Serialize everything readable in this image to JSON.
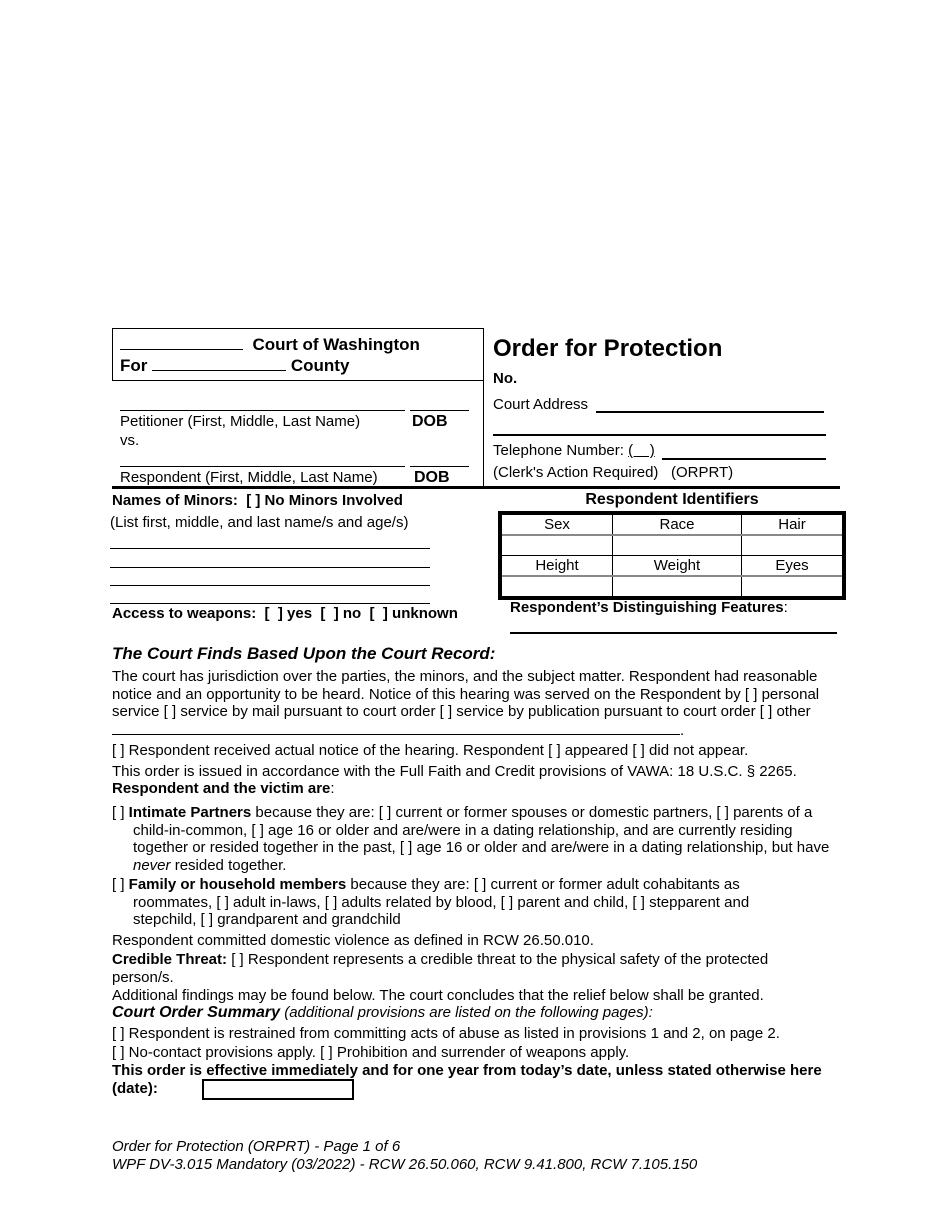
{
  "header": {
    "court_of": "Court of Washington",
    "for": "For",
    "county": "County",
    "petitioner_label": "Petitioner (First, Middle, Last Name)",
    "dob": "DOB",
    "vs": "vs.",
    "respondent_label": "Respondent (First, Middle, Last Name)",
    "title": "Order for Protection",
    "no": "No.",
    "court_address": "Court Address",
    "telephone": "Telephone Number:",
    "telephone_paren": "(    )",
    "clerk": "(Clerk's Action Required)",
    "code": "(ORPRT)"
  },
  "minors": {
    "label": "Names of Minors",
    "none": "[  ] No Minors Involved",
    "instruction": "(List first, middle, and last name/s and age/s)",
    "weapons_label": "Access to weapons",
    "weapons_options": ":  [  ] yes  [  ] no  [  ] unknown"
  },
  "identifiers": {
    "title": "Respondent Identifiers",
    "row1": [
      "Sex",
      "Race",
      "Hair"
    ],
    "row2": [
      "Height",
      "Weight",
      "Eyes"
    ],
    "features": "Respondent’s Distinguishing Features"
  },
  "findings": {
    "heading": "The Court Finds Based Upon the Court Record",
    "p1": "The court has jurisdiction over the parties, the minors, and the subject matter. Respondent had reasonable notice and an opportunity to be heard. Notice of this hearing was served on the Respondent by  [  ] personal service  [  ] service by mail pursuant to court order  [  ] service by publication pursuant to court order  [  ] other",
    "p2": "[  ] Respondent received actual notice of the hearing. Respondent  [  ] appeared  [  ] did not appear.",
    "p3": "This order is issued in accordance with the Full Faith and Credit provisions of VAWA: 18 U.S.C. § 2265.",
    "rel_label": "Respondent and the victim are",
    "intimate_box": "[  ] ",
    "intimate_label": "Intimate Partners",
    "intimate_text1": " because they are:  [  ] current or former spouses or domestic partners, [  ] parents of a child-in-common, [  ] age 16 or older and are/were in a dating relationship, and are currently residing together or resided together in the past, [  ] age 16 or older and are/were in a dating relationship, but have ",
    "intimate_never": "never",
    "intimate_text2": " resided together.",
    "family_box": "[  ] ",
    "family_label": "Family or household members",
    "family_text": " because they are:  [  ] current or former adult cohabitants as roommates, [  ] adult in-laws, [  ] adults related by blood, [  ] parent and child, [  ] stepparent and stepchild, [  ] grandparent and grandchild",
    "dv": "Respondent committed domestic violence as defined in RCW 26.50.010.",
    "threat_label": "Credible Threat:",
    "threat_text": "  [  ] Respondent represents a credible threat to the physical safety of the protected person/s.",
    "additional": "Additional findings may be found below. The court concludes that the relief below shall be granted."
  },
  "summary": {
    "heading": "Court Order Summary",
    "note": " (additional provisions are listed on the following pages):",
    "item1": "[  ]  Respondent is restrained from committing acts of abuse as listed in provisions 1 and 2, on page 2.",
    "item2": "[  ]  No-contact provisions apply.  [  ]  Prohibition and surrender of weapons apply.",
    "effective": "This order is effective immediately and for one year from today’s date, unless stated otherwise here (date):",
    "date_value": ""
  },
  "footer": {
    "line1": "Order for Protection (ORPRT) - Page 1 of 6",
    "line2": "WPF DV-3.015 Mandatory (03/2022) - RCW 26.50.060, RCW 9.41.800, RCW 7.105.150"
  }
}
